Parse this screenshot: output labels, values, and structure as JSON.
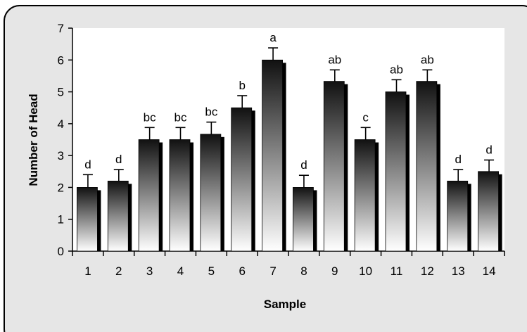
{
  "chart_data": {
    "type": "bar",
    "title": "",
    "xlabel": "Sample",
    "ylabel": "Number of Head",
    "ylim": [
      0,
      7
    ],
    "yticks": [
      0,
      1,
      2,
      3,
      4,
      5,
      6,
      7
    ],
    "categories": [
      "1",
      "2",
      "3",
      "4",
      "5",
      "6",
      "7",
      "8",
      "9",
      "10",
      "11",
      "12",
      "13",
      "14"
    ],
    "values": [
      2.0,
      2.2,
      3.5,
      3.5,
      3.67,
      4.5,
      6.0,
      2.0,
      5.33,
      3.5,
      5.0,
      5.33,
      2.2,
      2.5
    ],
    "errors": [
      0.4,
      0.36,
      0.38,
      0.38,
      0.38,
      0.38,
      0.38,
      0.38,
      0.36,
      0.38,
      0.38,
      0.36,
      0.36,
      0.36
    ],
    "significance_labels": [
      "d",
      "d",
      "bc",
      "bc",
      "bc",
      "b",
      "a",
      "d",
      "ab",
      "c",
      "ab",
      "ab",
      "d",
      "d"
    ],
    "grid": false,
    "legend": "none",
    "colors": {
      "bar_top": "#111111",
      "bar_bottom": "#ffffff",
      "bar_shadow": "#000000",
      "panel_background": "#e6e6e6",
      "plot_background": "#ffffff",
      "text": "#000000"
    }
  }
}
